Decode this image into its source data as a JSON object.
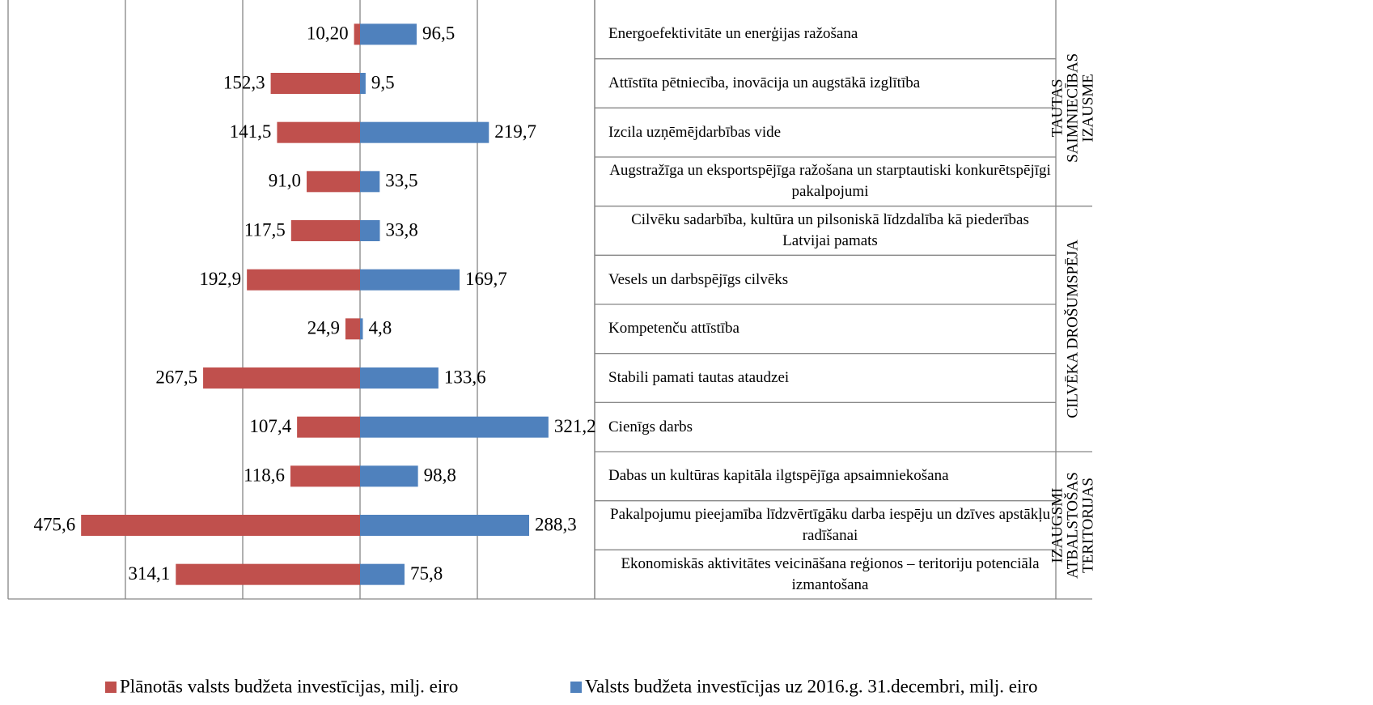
{
  "chart_data": {
    "type": "butterfly-bar",
    "groups": [
      {
        "label_lines": [
          "TAUTAS",
          "SAIMNIECĪBAS",
          "IZAUSME"
        ],
        "categories": [
          "Energoefektivitāte un enerģijas ražošana",
          "Attīstīta pētniecība, inovācija un augstākā izglītība",
          "Izcila uzņēmējdarbības vide",
          "Augstražīga un eksportspējīga ražošana un starptautiski konkurētspējīgi pakalpojumi"
        ]
      },
      {
        "label_lines": [
          "CILVĒKA DROŠUMSPĒJA"
        ],
        "categories": [
          "Cilvēku sadarbība, kultūra un pilsoniskā līdzdalība kā piederības Latvijai pamats",
          "Vesels un darbspējīgs cilvēks",
          "Kompetenču attīstība",
          "Stabili pamati tautas ataudzei",
          "Cienīgs darbs"
        ]
      },
      {
        "label_lines": [
          "IZAUGSMI",
          "ATBALSTOŠAS",
          "TERITORIJAS"
        ],
        "categories": [
          "Dabas un kultūras kapitāla ilgtspējīga apsaimniekošana",
          "Pakalpojumu pieejamība līdzvērtīgāku darba iespēju un  dzīves apstākļu radīšanai",
          "Ekonomiskās aktivitātes veicināšana reģionos – teritoriju potenciāla izmantošana"
        ]
      }
    ],
    "series": [
      {
        "name": "Plānotās valsts budžeta investīcijas, milj. eiro",
        "color": "#c0504d",
        "side": "left",
        "values": [
          10.2,
          152.3,
          141.5,
          91.0,
          117.5,
          192.9,
          24.9,
          267.5,
          107.4,
          118.6,
          475.6,
          314.1
        ],
        "value_labels": [
          "10,20",
          "152,3",
          "141,5",
          "91,0",
          "117,5",
          "192,9",
          "24,9",
          "267,5",
          "107,4",
          "118,6",
          "475,6",
          "314,1"
        ]
      },
      {
        "name": "Valsts budžeta investīcijas uz 2016.g. 31.decembri, milj. eiro",
        "color": "#4f81bd",
        "side": "right",
        "values": [
          96.5,
          9.5,
          219.7,
          33.5,
          33.8,
          169.7,
          4.8,
          133.6,
          321.2,
          98.8,
          288.3,
          75.8
        ],
        "value_labels": [
          "96,5",
          "9,5",
          "219,7",
          "33,5",
          "33,8",
          "169,7",
          "4,8",
          "133,6",
          "321,2",
          "98,8",
          "288,3",
          "75,8"
        ]
      }
    ],
    "xlim": [
      -600,
      400
    ],
    "xticks": [
      -400,
      -200,
      0,
      200,
      400
    ],
    "grid": true,
    "legend": "bottom"
  }
}
